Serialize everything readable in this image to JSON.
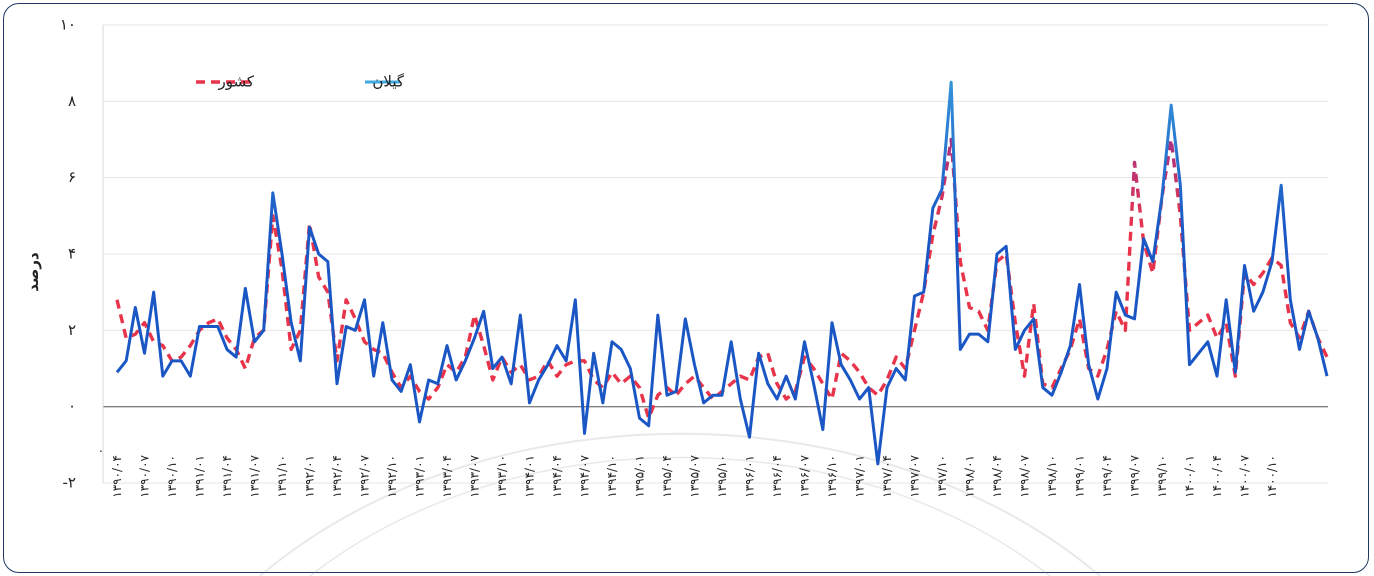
{
  "chart_data": {
    "type": "line",
    "ylabel": "درصد",
    "ylim": [
      -2,
      10
    ],
    "yticks": [
      -2,
      0,
      2,
      4,
      6,
      8,
      10
    ],
    "ytick_labels": [
      "-۲",
      "۰",
      "۲",
      "۴",
      "۶",
      "۸",
      "۱۰"
    ],
    "x_tick_labels": [
      "۱۳۹۰/۰۴",
      "۱۳۹۰/۰۷",
      "۱۳۹۰/۱۰",
      "۱۳۹۱/۰۱",
      "۱۳۹۱/۰۴",
      "۱۳۹۱/۰۷",
      "۱۳۹۱/۱۰",
      "۱۳۹۲/۰۱",
      "۱۳۹۲/۰۴",
      "۱۳۹۲/۰۷",
      "۱۳۹۲/۱۰",
      "۱۳۹۳/۰۱",
      "۱۳۹۳/۰۴",
      "۱۳۹۳/۰۷",
      "۱۳۹۳/۱۰",
      "۱۳۹۴/۰۱",
      "۱۳۹۴/۰۴",
      "۱۳۹۴/۰۷",
      "۱۳۹۴/۱۰",
      "۱۳۹۵/۰۱",
      "۱۳۹۵/۰۴",
      "۱۳۹۵/۰۷",
      "۱۳۹۵/۱۰",
      "۱۳۹۶/۰۱",
      "۱۳۹۶/۰۴",
      "۱۳۹۶/۰۷",
      "۱۳۹۶/۱۰",
      "۱۳۹۷/۰۱",
      "۱۳۹۷/۰۴",
      "۱۳۹۷/۰۷",
      "۱۳۹۷/۱۰",
      "۱۳۹۸/۰۱",
      "۱۳۹۸/۰۴",
      "۱۳۹۸/۰۷",
      "۱۳۹۸/۱۰",
      "۱۳۹۹/۰۱",
      "۱۳۹۹/۰۴",
      "۱۳۹۹/۰۷",
      "۱۳۹۹/۱۰",
      "۱۴۰۰/۰۱",
      "۱۴۰۰/۰۴",
      "۱۴۰۰/۰۷",
      "۱۴۰۰/۱۰"
    ],
    "first_tick_extra": ".",
    "legend_position": "top-left",
    "grid": true,
    "series": [
      {
        "name": "گیلان",
        "style": "solid",
        "color": "#1a57c5",
        "color2": "#3fa9e0",
        "values": [
          0.9,
          1.2,
          2.6,
          1.4,
          3.0,
          0.8,
          1.2,
          1.2,
          0.8,
          2.1,
          2.1,
          2.1,
          1.5,
          1.3,
          3.1,
          1.7,
          2.0,
          5.6,
          4.0,
          2.2,
          1.2,
          4.7,
          4.0,
          3.8,
          0.6,
          2.1,
          2.0,
          2.8,
          0.8,
          2.2,
          0.7,
          0.4,
          1.1,
          -0.4,
          0.7,
          0.6,
          1.6,
          0.7,
          1.2,
          1.8,
          2.5,
          1.0,
          1.3,
          0.6,
          2.4,
          0.1,
          0.7,
          1.1,
          1.6,
          1.2,
          2.8,
          -0.7,
          1.4,
          0.1,
          1.7,
          1.5,
          1.0,
          -0.3,
          -0.5,
          2.4,
          0.3,
          0.4,
          2.3,
          1.1,
          0.1,
          0.3,
          0.3,
          1.7,
          0.2,
          -0.8,
          1.4,
          0.6,
          0.2,
          0.8,
          0.2,
          1.7,
          0.6,
          -0.6,
          2.2,
          1.1,
          0.7,
          0.2,
          0.5,
          -1.5,
          0.5,
          1.0,
          0.7,
          2.9,
          3.0,
          5.2,
          5.7,
          8.5,
          1.5,
          1.9,
          1.9,
          1.7,
          4.0,
          4.2,
          1.5,
          2.0,
          2.3,
          0.5,
          0.3,
          0.9,
          1.6,
          3.2,
          1.1,
          0.2,
          1.0,
          3.0,
          2.4,
          2.3,
          4.4,
          3.8,
          5.5,
          7.9,
          5.8,
          1.1,
          1.4,
          1.7,
          0.8,
          2.8,
          0.9,
          3.7,
          2.5,
          3.0,
          3.8,
          5.8,
          2.8,
          1.5,
          2.5,
          1.8,
          0.8
        ]
      },
      {
        "name": "کشور",
        "style": "dashed",
        "color": "#e8344a",
        "color2": "#5a2fc9",
        "values": [
          2.8,
          1.8,
          1.9,
          2.2,
          1.7,
          1.6,
          1.2,
          1.3,
          1.6,
          2.0,
          2.2,
          2.3,
          1.8,
          1.5,
          1.0,
          1.8,
          2.0,
          5.0,
          3.6,
          1.5,
          2.0,
          4.8,
          3.4,
          3.0,
          1.2,
          2.8,
          2.3,
          1.7,
          1.5,
          1.4,
          0.9,
          0.5,
          0.8,
          0.4,
          0.2,
          0.5,
          1.1,
          0.9,
          1.3,
          2.4,
          1.6,
          0.7,
          1.3,
          0.9,
          1.1,
          0.7,
          0.8,
          1.2,
          0.8,
          1.1,
          1.2,
          1.2,
          0.7,
          0.5,
          0.9,
          0.6,
          0.8,
          0.5,
          -0.3,
          0.3,
          0.5,
          0.3,
          0.6,
          0.8,
          0.5,
          0.2,
          0.4,
          0.6,
          0.8,
          0.7,
          1.3,
          1.4,
          0.6,
          0.2,
          0.4,
          1.3,
          1.0,
          0.6,
          0.2,
          1.4,
          1.2,
          0.9,
          0.5,
          0.3,
          0.7,
          1.3,
          1.0,
          2.0,
          3.0,
          4.5,
          5.5,
          7.0,
          3.8,
          2.6,
          2.5,
          2.0,
          3.8,
          4.0,
          2.2,
          0.8,
          2.7,
          0.6,
          0.5,
          1.0,
          1.5,
          2.3,
          1.0,
          0.8,
          1.5,
          2.5,
          2.0,
          6.4,
          4.3,
          3.5,
          5.5,
          7.0,
          5.0,
          2.0,
          2.2,
          2.4,
          1.8,
          2.2,
          0.8,
          3.5,
          3.2,
          3.5,
          3.9,
          3.7,
          2.2,
          1.8,
          2.5,
          1.8,
          1.3
        ]
      }
    ]
  }
}
